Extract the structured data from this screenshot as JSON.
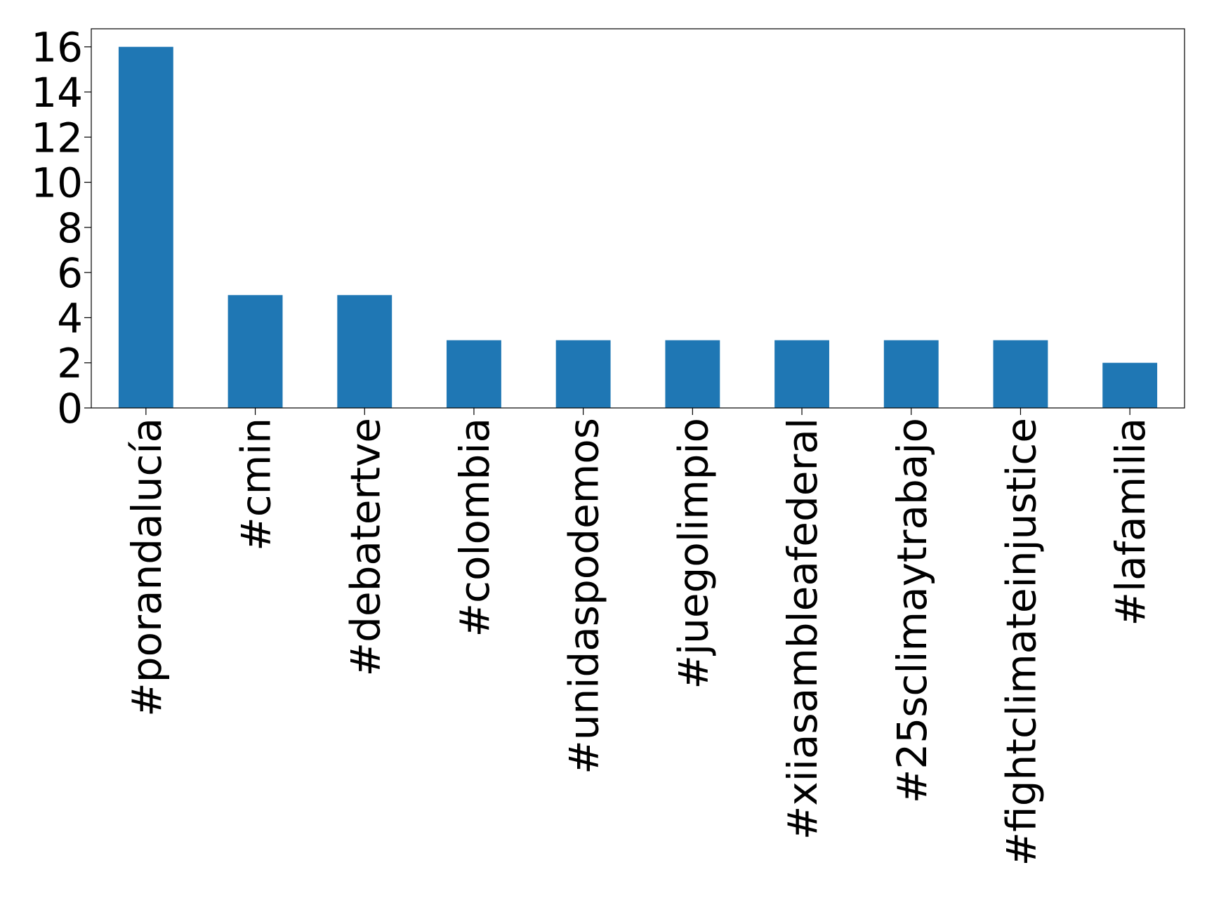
{
  "chart_data": {
    "type": "bar",
    "categories": [
      "#porandalucía",
      "#cmin",
      "#debatertve",
      "#colombia",
      "#unidaspodemos",
      "#juegolimpio",
      "#xiiasambleafederal",
      "#25sclimaytrabajo",
      "#fightclimateinjustice",
      "#lafamilia"
    ],
    "values": [
      16,
      5,
      5,
      3,
      3,
      3,
      3,
      3,
      3,
      2
    ],
    "color": "#1f77b4",
    "ylim": [
      0,
      16.8
    ],
    "yticks": [
      0,
      2,
      4,
      6,
      8,
      10,
      12,
      14,
      16
    ],
    "grid": false
  }
}
